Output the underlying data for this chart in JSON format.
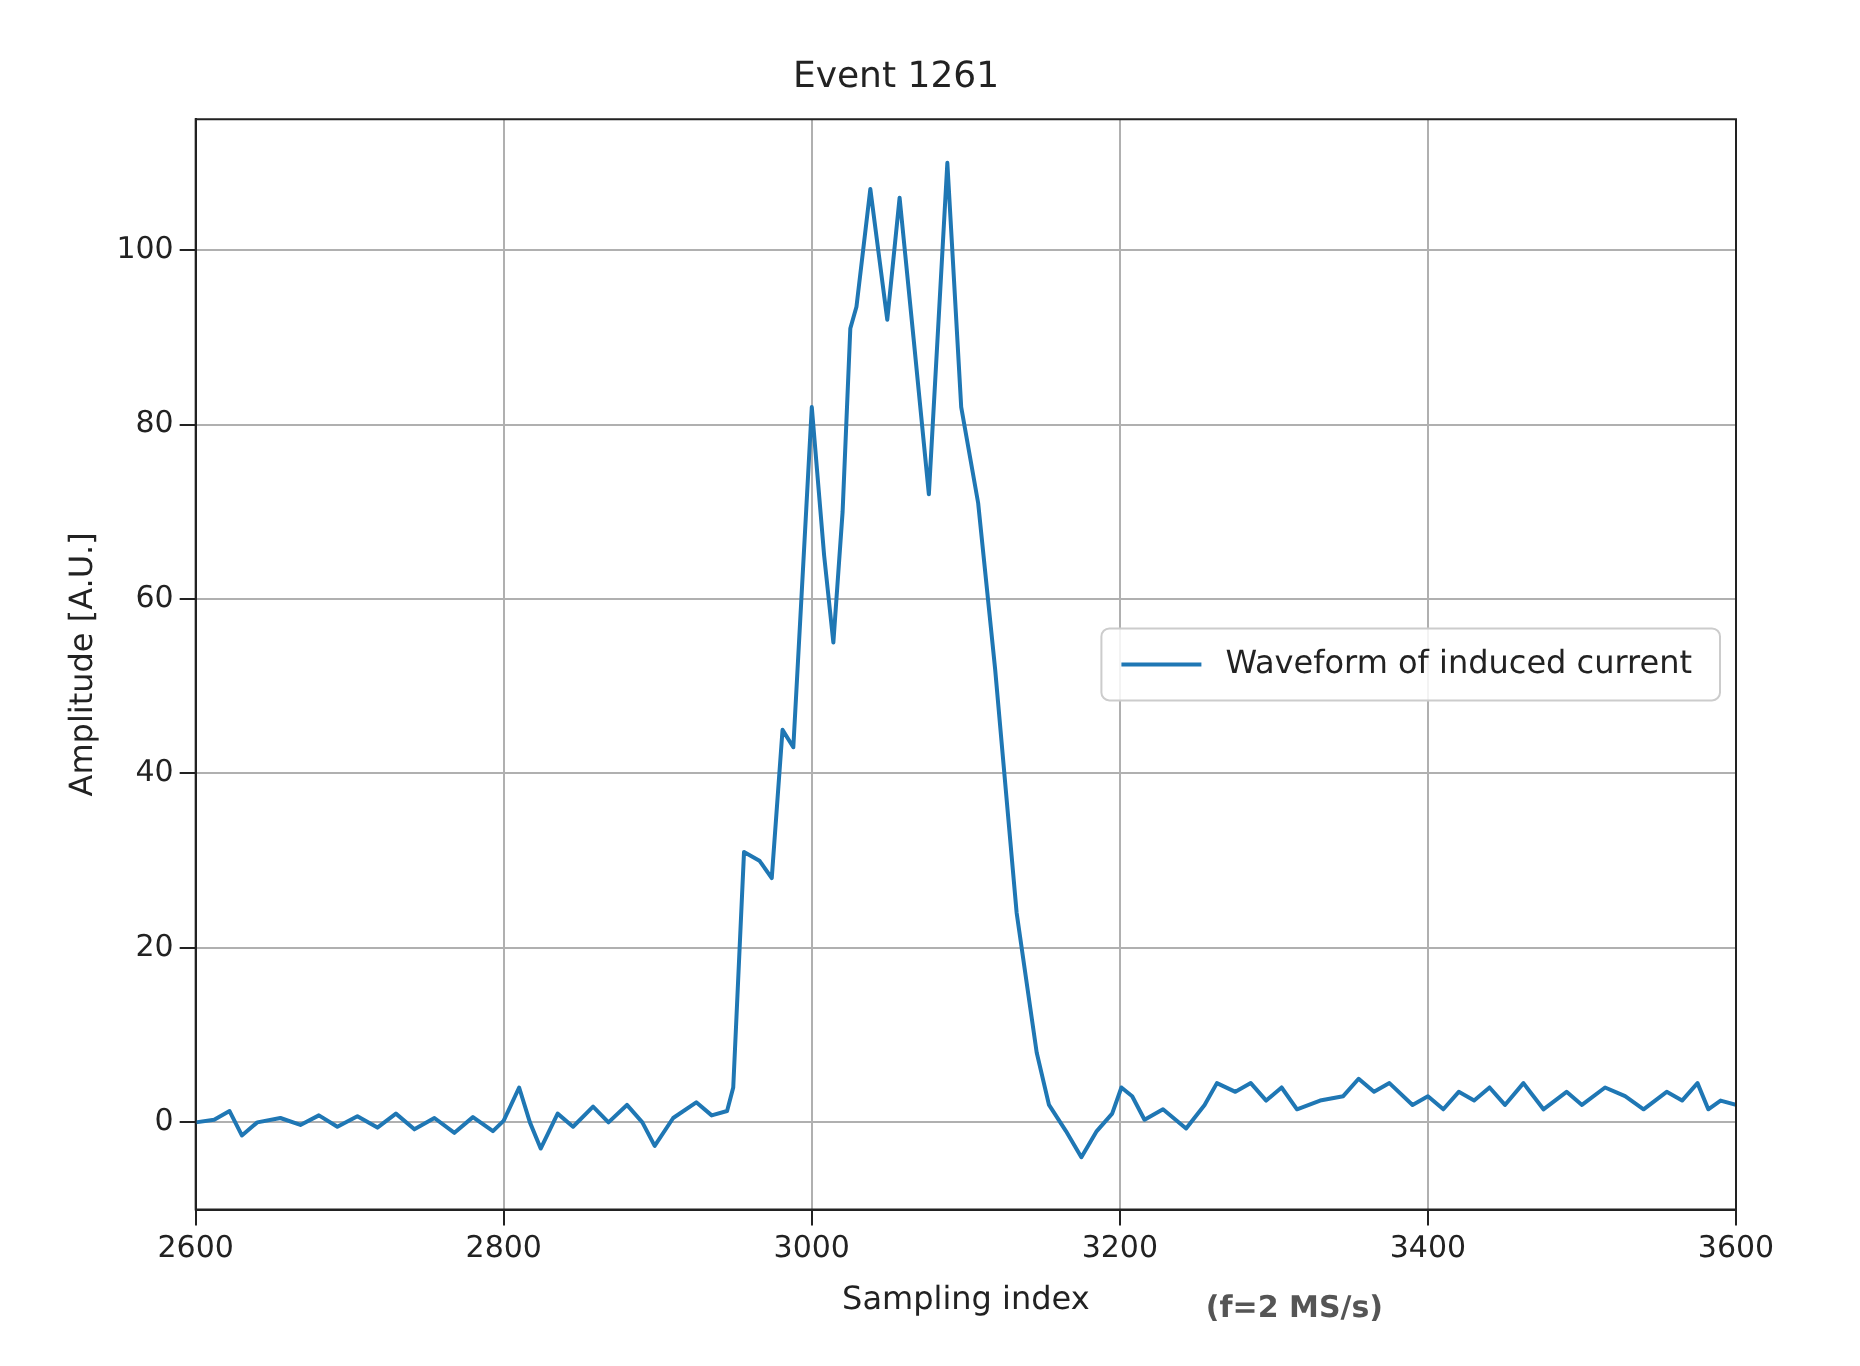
{
  "chart_data": {
    "type": "line",
    "title": "Event 1261",
    "xlabel": "Sampling index",
    "ylabel": "Amplitude [A.U.]",
    "annotations": [
      "(f=2 MS/s)"
    ],
    "x": [
      2600,
      2612,
      2622,
      2630,
      2640,
      2655,
      2668,
      2680,
      2692,
      2705,
      2718,
      2730,
      2742,
      2755,
      2768,
      2780,
      2793,
      2800,
      2810,
      2817,
      2824,
      2835,
      2845,
      2858,
      2868,
      2880,
      2890,
      2898,
      2910,
      2925,
      2935,
      2945,
      2949,
      2956,
      2966,
      2974,
      2981,
      2988,
      3000,
      3008,
      3014,
      3020,
      3025,
      3029,
      3038,
      3049,
      3057,
      3066,
      3076,
      3088,
      3097,
      3108,
      3119,
      3133,
      3146,
      3154,
      3165,
      3175,
      3185,
      3195,
      3201,
      3208,
      3216,
      3228,
      3243,
      3255,
      3263,
      3275,
      3285,
      3295,
      3305,
      3315,
      3330,
      3345,
      3355,
      3365,
      3375,
      3390,
      3400,
      3410,
      3420,
      3430,
      3440,
      3450,
      3462,
      3475,
      3490,
      3500,
      3515,
      3528,
      3540,
      3555,
      3565,
      3575,
      3582,
      3590,
      3600
    ],
    "series": [
      {
        "name": "Waveform of induced current",
        "color": "#1f77b4",
        "values": [
          0,
          0.3,
          1.3,
          -1.5,
          0,
          0.5,
          -0.3,
          0.8,
          -0.5,
          0.7,
          -0.6,
          1,
          -0.8,
          0.5,
          -1.2,
          0.6,
          -1,
          0.2,
          4,
          0,
          -3,
          1,
          -0.5,
          1.8,
          0,
          2,
          0,
          -2.7,
          0.5,
          2.3,
          0.8,
          1.3,
          4,
          31,
          30,
          28,
          45,
          43,
          82,
          65,
          55,
          70,
          91,
          93.5,
          107,
          92,
          106,
          90,
          72,
          110,
          82,
          71,
          52,
          24,
          8,
          2,
          -1,
          -4,
          -1,
          1,
          4,
          3,
          0.3,
          1.5,
          -0.7,
          2,
          4.5,
          3.5,
          4.5,
          2.5,
          4,
          1.5,
          2.5,
          3,
          5,
          3.5,
          4.5,
          2,
          3,
          1.5,
          3.5,
          2.5,
          4,
          2,
          4.5,
          1.5,
          3.5,
          2,
          4,
          3,
          1.5,
          3.5,
          2.5,
          4.5,
          1.5,
          2.5,
          2
        ]
      }
    ],
    "xlim": [
      2600,
      3600
    ],
    "xticks": [
      2600,
      2800,
      3000,
      3200,
      3400,
      3600
    ],
    "ylim": [
      -10,
      115
    ],
    "yticks": [
      0,
      20,
      40,
      60,
      80,
      100
    ],
    "grid": true,
    "legend": "right",
    "marker": "none",
    "line_style": "solid"
  }
}
